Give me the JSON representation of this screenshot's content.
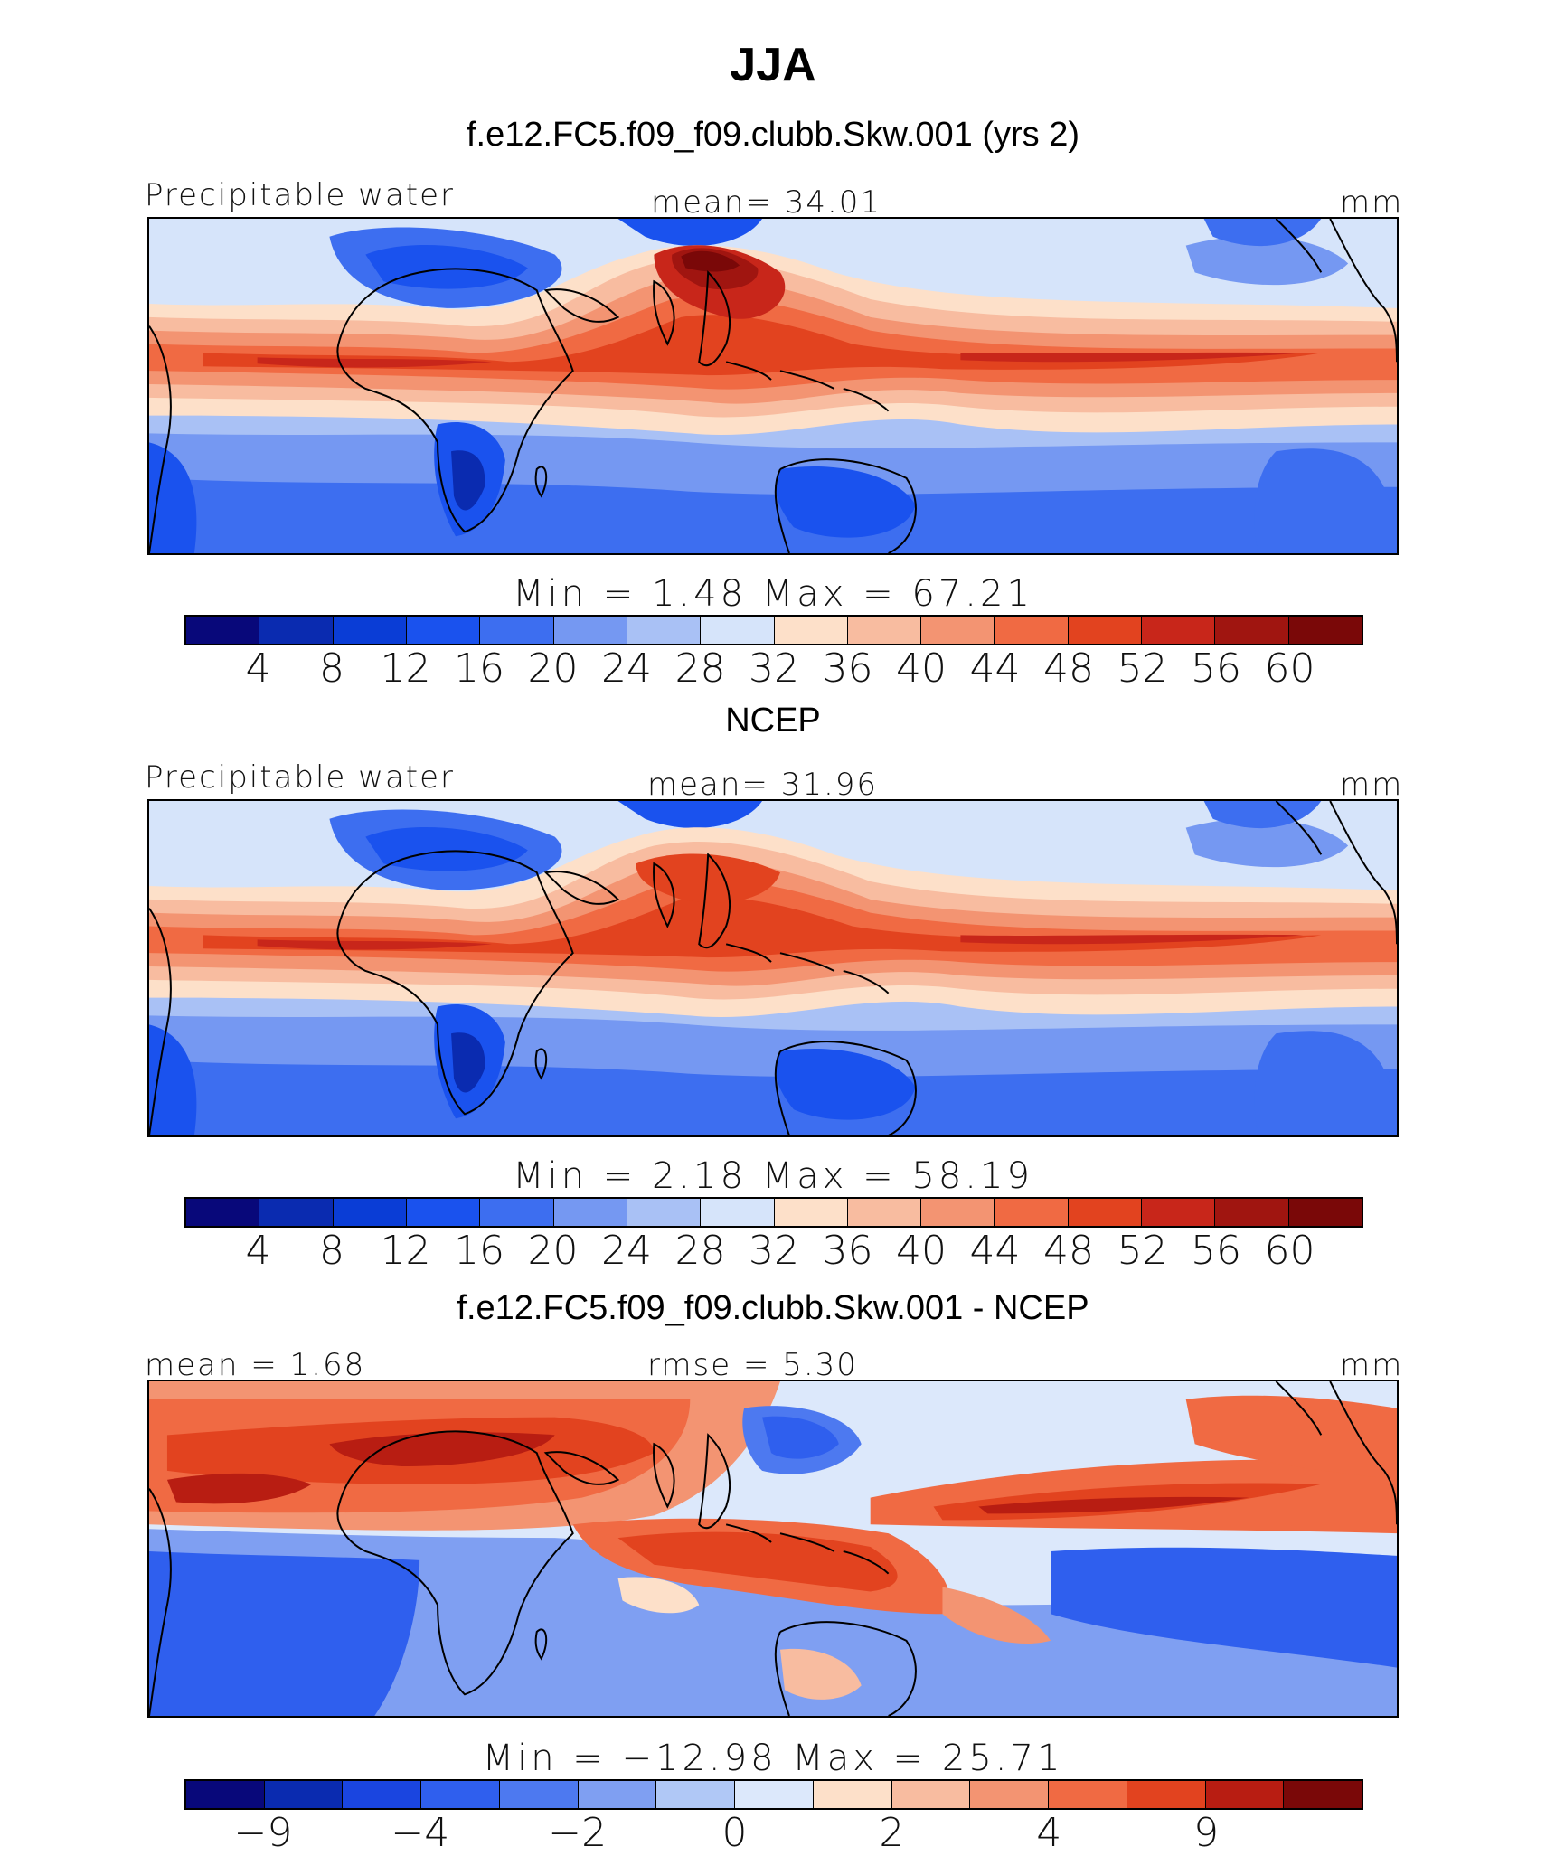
{
  "title": "JJA",
  "panels": [
    {
      "heading": "f.e12.FC5.f09_f09.clubb.Skw.001 (yrs 2)",
      "left_label": "Precipitable water",
      "center_label": "mean=   34.01",
      "units": "mm",
      "minmax": "Min =    1.48  Max =   67.21",
      "colorbar_ticks": [
        "4",
        "8",
        "12",
        "16",
        "20",
        "24",
        "28",
        "32",
        "36",
        "40",
        "44",
        "48",
        "52",
        "56",
        "60"
      ],
      "field": "model"
    },
    {
      "heading": "NCEP",
      "left_label": "Precipitable water",
      "center_label": "mean=   31.96",
      "units": "mm",
      "minmax": "Min =    2.18  Max =   58.19",
      "colorbar_ticks": [
        "4",
        "8",
        "12",
        "16",
        "20",
        "24",
        "28",
        "32",
        "36",
        "40",
        "44",
        "48",
        "52",
        "56",
        "60"
      ],
      "field": "obs"
    },
    {
      "heading": "f.e12.FC5.f09_f09.clubb.Skw.001 - NCEP",
      "left_label": "mean =    1.68",
      "center_label": "rmse =    5.30",
      "units": "mm",
      "minmax": "Min = −12.98  Max =   25.71",
      "colorbar_ticks": [
        "−9",
        "",
        "−4",
        "",
        "−2",
        "",
        "0",
        "",
        "2",
        "",
        "4",
        "",
        "9"
      ],
      "field": "diff"
    }
  ],
  "colormap": {
    "abs_colors": [
      "#08087a",
      "#0a2bb0",
      "#0a3dd6",
      "#1a52ee",
      "#3d6ef0",
      "#7598f2",
      "#a9c1f5",
      "#d6e4fa",
      "#fde0c9",
      "#f8bca0",
      "#f39472",
      "#f06a43",
      "#e2431f",
      "#c8261a",
      "#a01510",
      "#7a0808"
    ],
    "diff_colors": [
      "#08087a",
      "#0a2bb0",
      "#1a45e0",
      "#2f5fee",
      "#4d79f0",
      "#7f9ff2",
      "#b0c8f6",
      "#dce8fb",
      "#fde0c9",
      "#f8bca0",
      "#f39472",
      "#f06a43",
      "#e2431f",
      "#b81d12",
      "#7a0808"
    ]
  }
}
